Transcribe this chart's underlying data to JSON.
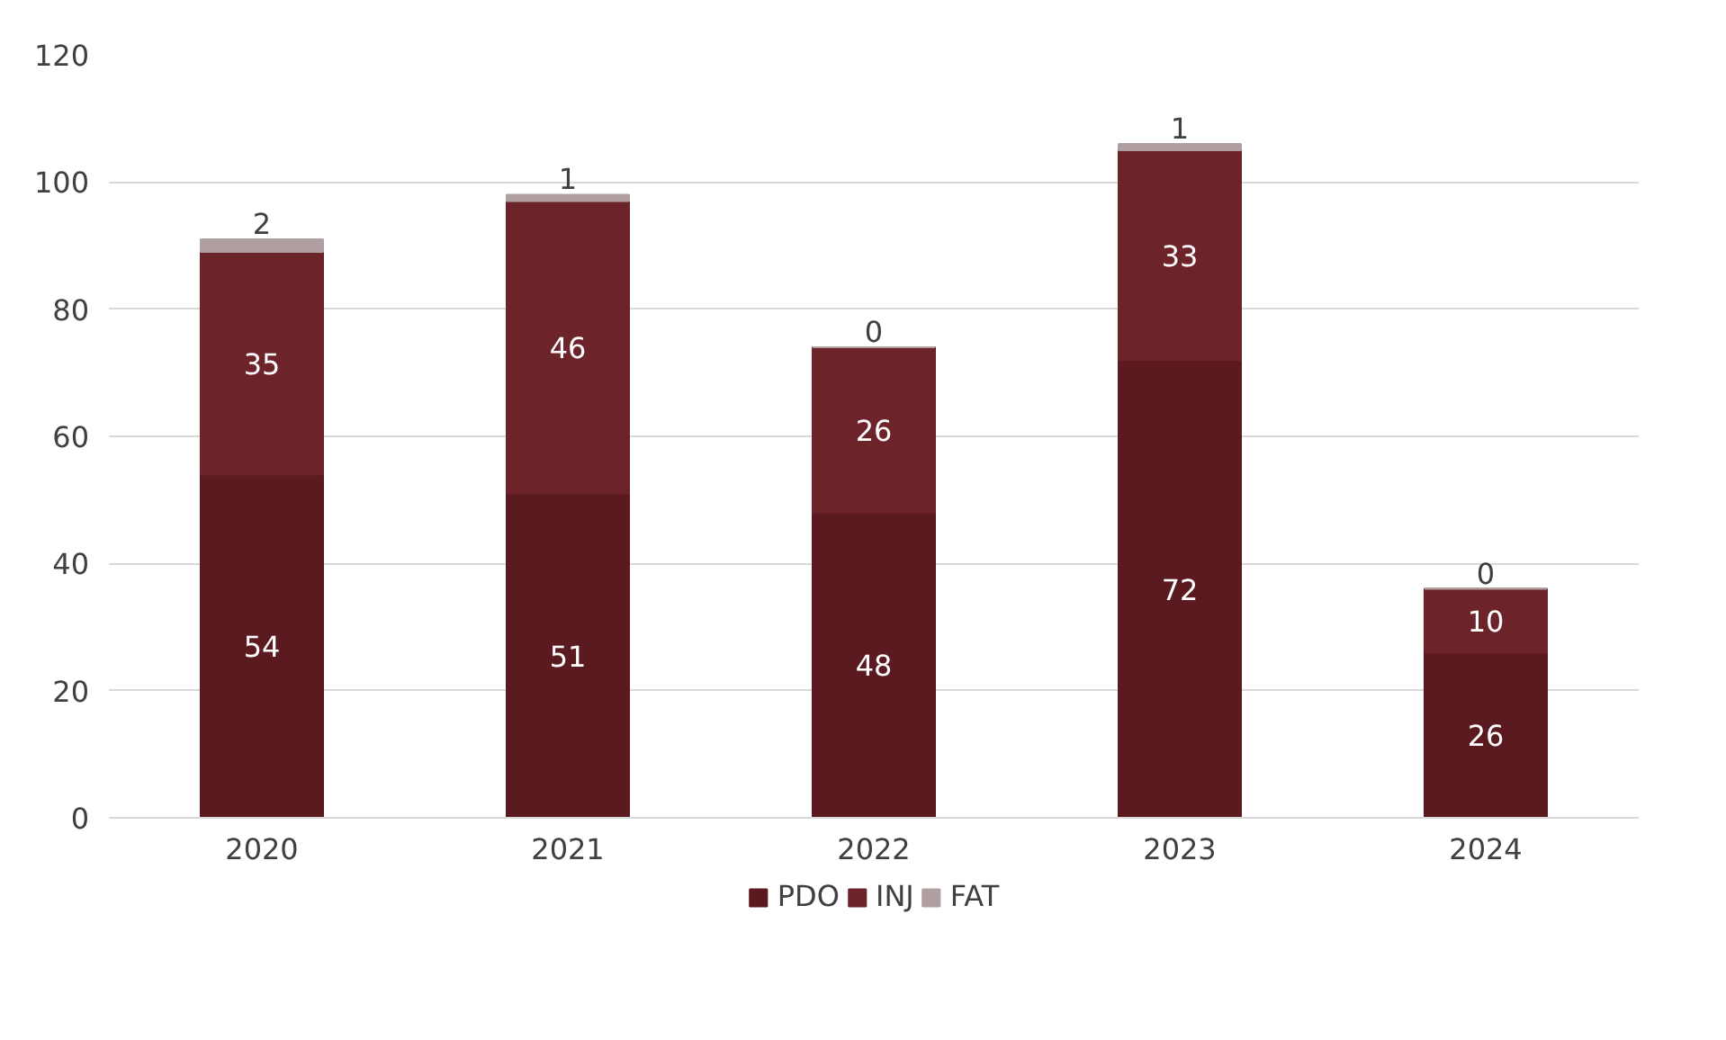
{
  "chart_data": {
    "type": "bar",
    "stacked": true,
    "categories": [
      "2020",
      "2021",
      "2022",
      "2023",
      "2024"
    ],
    "series": [
      {
        "name": "PDO",
        "color": "#5a1a20",
        "values": [
          54,
          51,
          48,
          72,
          26
        ]
      },
      {
        "name": "INJ",
        "color": "#6c232a",
        "values": [
          35,
          46,
          26,
          33,
          10
        ]
      },
      {
        "name": "FAT",
        "color": "#b09fa1",
        "values": [
          2,
          1,
          0,
          1,
          0
        ]
      }
    ],
    "ylim": [
      0,
      120
    ],
    "yticks": [
      0,
      20,
      40,
      60,
      80,
      100,
      120
    ],
    "grid": "y",
    "legend": "bottom",
    "data_labels": true
  }
}
